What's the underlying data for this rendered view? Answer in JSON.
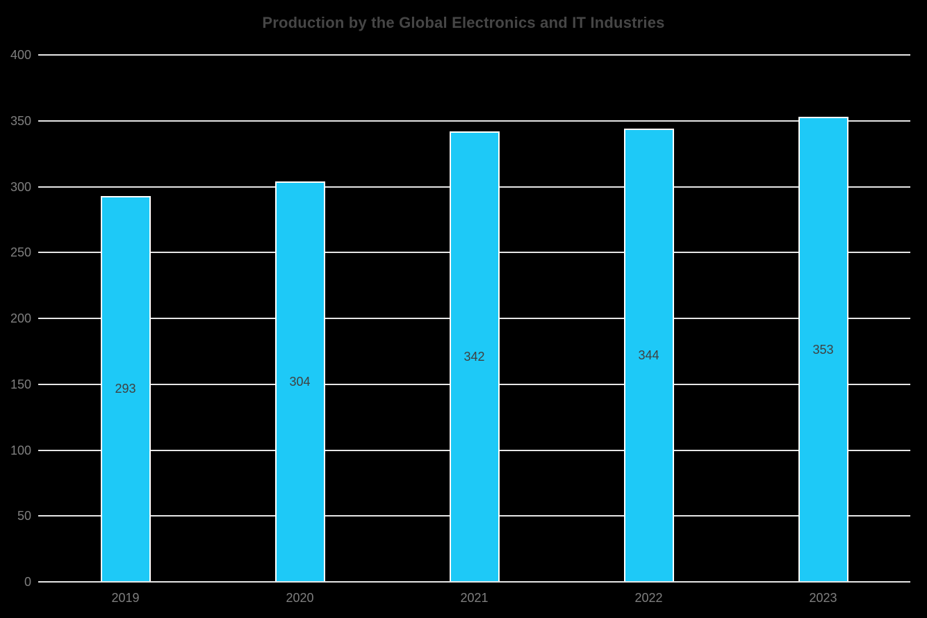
{
  "chart_data": {
    "type": "bar",
    "title": "Production by the Global Electronics and IT Industries",
    "categories": [
      "2019",
      "2020",
      "2021",
      "2022",
      "2023"
    ],
    "values": [
      293,
      304,
      342,
      344,
      353
    ],
    "data_labels": [
      293,
      304,
      342,
      344,
      353
    ],
    "data_label_position": "center-inside-bar",
    "xlabel": "",
    "ylabel": "",
    "ylim": [
      0,
      400
    ],
    "yticks": [
      0,
      50,
      100,
      150,
      200,
      250,
      300,
      350,
      400
    ],
    "grid": true,
    "legend_position": "none"
  },
  "colors": {
    "background": "#000000",
    "bar_fill": "#1EC9F7",
    "bar_border": "#FFFFFF",
    "gridline": "#E6E6E6",
    "axis_line": "#E6E6E6",
    "title_text": "#464646",
    "tick_text": "#7F7F7F",
    "data_label_text": "#3F4040"
  }
}
